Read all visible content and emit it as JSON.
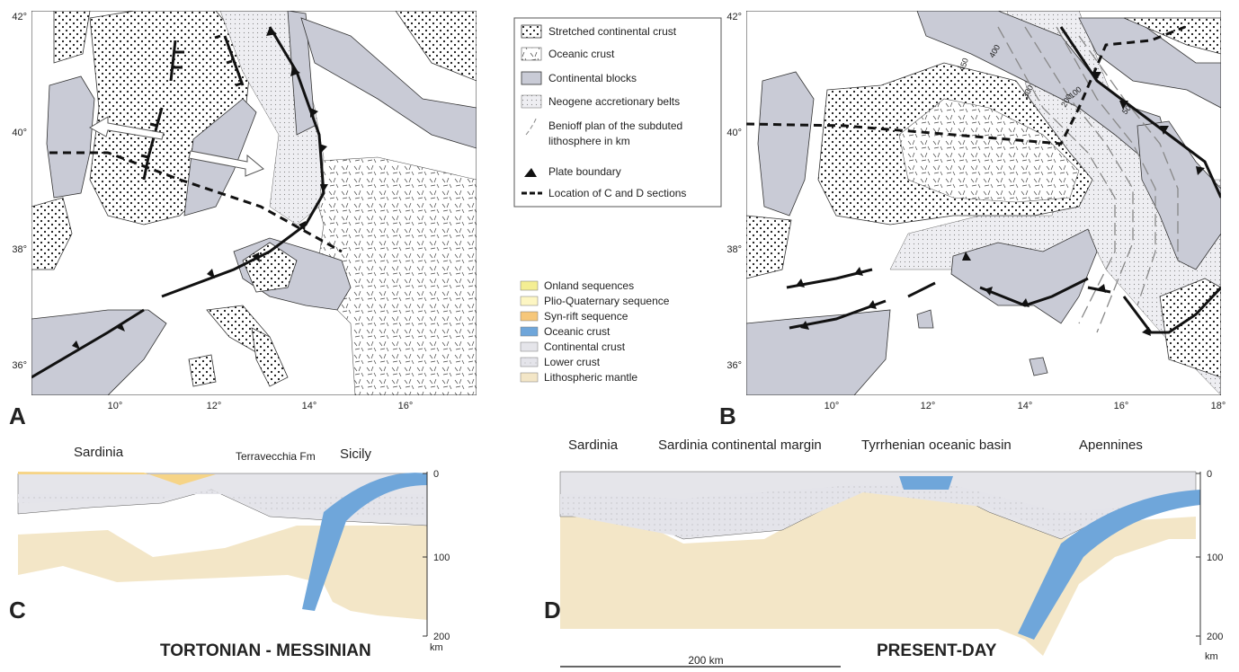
{
  "map_a": {
    "label": "A",
    "lat_labels": [
      "42°",
      "40°",
      "38°",
      "36°"
    ],
    "lon_labels": [
      "10°",
      "12°",
      "14°",
      "16°"
    ]
  },
  "map_b": {
    "label": "B",
    "lat_labels": [
      "42°",
      "40°",
      "38°",
      "36°"
    ],
    "lon_labels": [
      "10°",
      "12°",
      "14°",
      "16°",
      "18°"
    ],
    "contour_labels": [
      "450",
      "400",
      "300",
      "200",
      "100",
      "50"
    ]
  },
  "legend_units": [
    "Stretched continental crust",
    "Oceanic crust",
    "Continental blocks",
    "Neogene accretionary belts",
    "Benioff plan of the subduted",
    "lithosphere in km",
    "Plate boundary",
    "Location of C and D sections"
  ],
  "legend_section": [
    "Onland sequences",
    "Plio-Quaternary sequence",
    "Syn-rift sequence",
    "Oceanic crust",
    "Continental crust",
    "Lower crust",
    "Lithospheric mantle"
  ],
  "section_c": {
    "label": "C",
    "places": [
      "Sardinia",
      "Terravecchia Fm",
      "Sicily"
    ],
    "depth_labels": [
      "0",
      "100",
      "200"
    ],
    "unit": "km",
    "title": "TORTONIAN - MESSINIAN"
  },
  "section_d": {
    "label": "D",
    "places": [
      "Sardinia",
      "Sardinia continental margin",
      "Tyrrhenian oceanic basin",
      "Apennines"
    ],
    "depth_labels": [
      "0",
      "100",
      "200"
    ],
    "unit": "km",
    "title": "PRESENT-DAY",
    "scale_bar": "200 km"
  }
}
